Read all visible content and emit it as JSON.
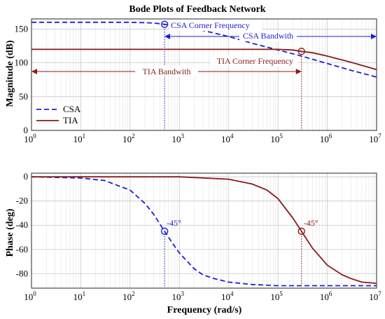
{
  "chart_data": [
    {
      "type": "line",
      "title": "Bode Plots of Feedback Network",
      "xlabel": "",
      "ylabel": "Magnitude (dB)",
      "xscale": "log",
      "xlim": [
        1,
        10000000
      ],
      "ylim": [
        0,
        165
      ],
      "x_ticks": [
        {
          "base": "10",
          "exp": "0"
        },
        {
          "base": "10",
          "exp": "1"
        },
        {
          "base": "10",
          "exp": "2"
        },
        {
          "base": "10",
          "exp": "3"
        },
        {
          "base": "10",
          "exp": "4"
        },
        {
          "base": "10",
          "exp": "5"
        },
        {
          "base": "10",
          "exp": "6"
        },
        {
          "base": "10",
          "exp": "7"
        }
      ],
      "y_ticks": [
        "0",
        "50",
        "100",
        "150"
      ],
      "grid": true,
      "legend": "bottom-left",
      "series": [
        {
          "name": "CSA",
          "color": "#1f1fd6",
          "style": "dashed",
          "x": [
            1,
            10,
            100,
            300,
            500,
            1000,
            3000,
            10000,
            30000,
            100000,
            300000,
            1000000,
            3000000,
            10000000
          ],
          "y": [
            160,
            160,
            160,
            159,
            157,
            154,
            148,
            139,
            129,
            119,
            110,
            99,
            89,
            79
          ]
        },
        {
          "name": "TIA",
          "color": "#8b1a1a",
          "style": "solid",
          "x": [
            1,
            10,
            100,
            1000,
            10000,
            100000,
            200000,
            300000,
            500000,
            1000000,
            3000000,
            10000000
          ],
          "y": [
            120,
            120,
            120,
            120,
            120,
            120,
            119,
            117,
            115,
            110,
            101,
            90
          ]
        }
      ],
      "markers": [
        {
          "series": "CSA",
          "x": 500,
          "y": 157
        },
        {
          "series": "TIA",
          "x": 300000,
          "y": 117
        }
      ],
      "annotations": {
        "csa_corner": "CSA Corner Frequency",
        "csa_bandwidth": "CSA Bandwith",
        "tia_bandwidth": "TIA Bandwith",
        "tia_corner": "TIA Corner Frequency"
      }
    },
    {
      "type": "line",
      "title": "",
      "xlabel": "Frequency (rad/s)",
      "ylabel": "Phase (deg)",
      "xscale": "log",
      "xlim": [
        1,
        10000000
      ],
      "ylim": [
        -92,
        3
      ],
      "x_ticks": [
        {
          "base": "10",
          "exp": "0"
        },
        {
          "base": "10",
          "exp": "1"
        },
        {
          "base": "10",
          "exp": "2"
        },
        {
          "base": "10",
          "exp": "3"
        },
        {
          "base": "10",
          "exp": "4"
        },
        {
          "base": "10",
          "exp": "5"
        },
        {
          "base": "10",
          "exp": "6"
        },
        {
          "base": "10",
          "exp": "7"
        }
      ],
      "y_ticks": [
        "0",
        "-20",
        "-40",
        "-60",
        "-80"
      ],
      "grid": true,
      "series": [
        {
          "name": "CSA",
          "color": "#1f1fd6",
          "style": "dashed",
          "x": [
            1,
            10,
            30,
            100,
            200,
            300,
            500,
            700,
            1000,
            2000,
            3000,
            5000,
            10000,
            30000,
            100000,
            10000000
          ],
          "y": [
            0,
            -1,
            -3,
            -11,
            -22,
            -31,
            -45,
            -54,
            -63,
            -76,
            -81,
            -84,
            -87,
            -89,
            -90,
            -90
          ]
        },
        {
          "name": "TIA",
          "color": "#8b1a1a",
          "style": "solid",
          "x": [
            1,
            1000,
            10000,
            30000,
            60000,
            100000,
            200000,
            300000,
            500000,
            1000000,
            2000000,
            3000000,
            5000000,
            10000000
          ],
          "y": [
            0,
            0,
            -2,
            -6,
            -11,
            -18,
            -34,
            -45,
            -59,
            -73,
            -81,
            -84,
            -87,
            -88
          ]
        }
      ],
      "markers": [
        {
          "series": "CSA",
          "x": 500,
          "y": -45
        },
        {
          "series": "TIA",
          "x": 300000,
          "y": -45
        }
      ],
      "annotations": {
        "csa_phase": "-45°",
        "tia_phase": "-45°"
      }
    }
  ]
}
